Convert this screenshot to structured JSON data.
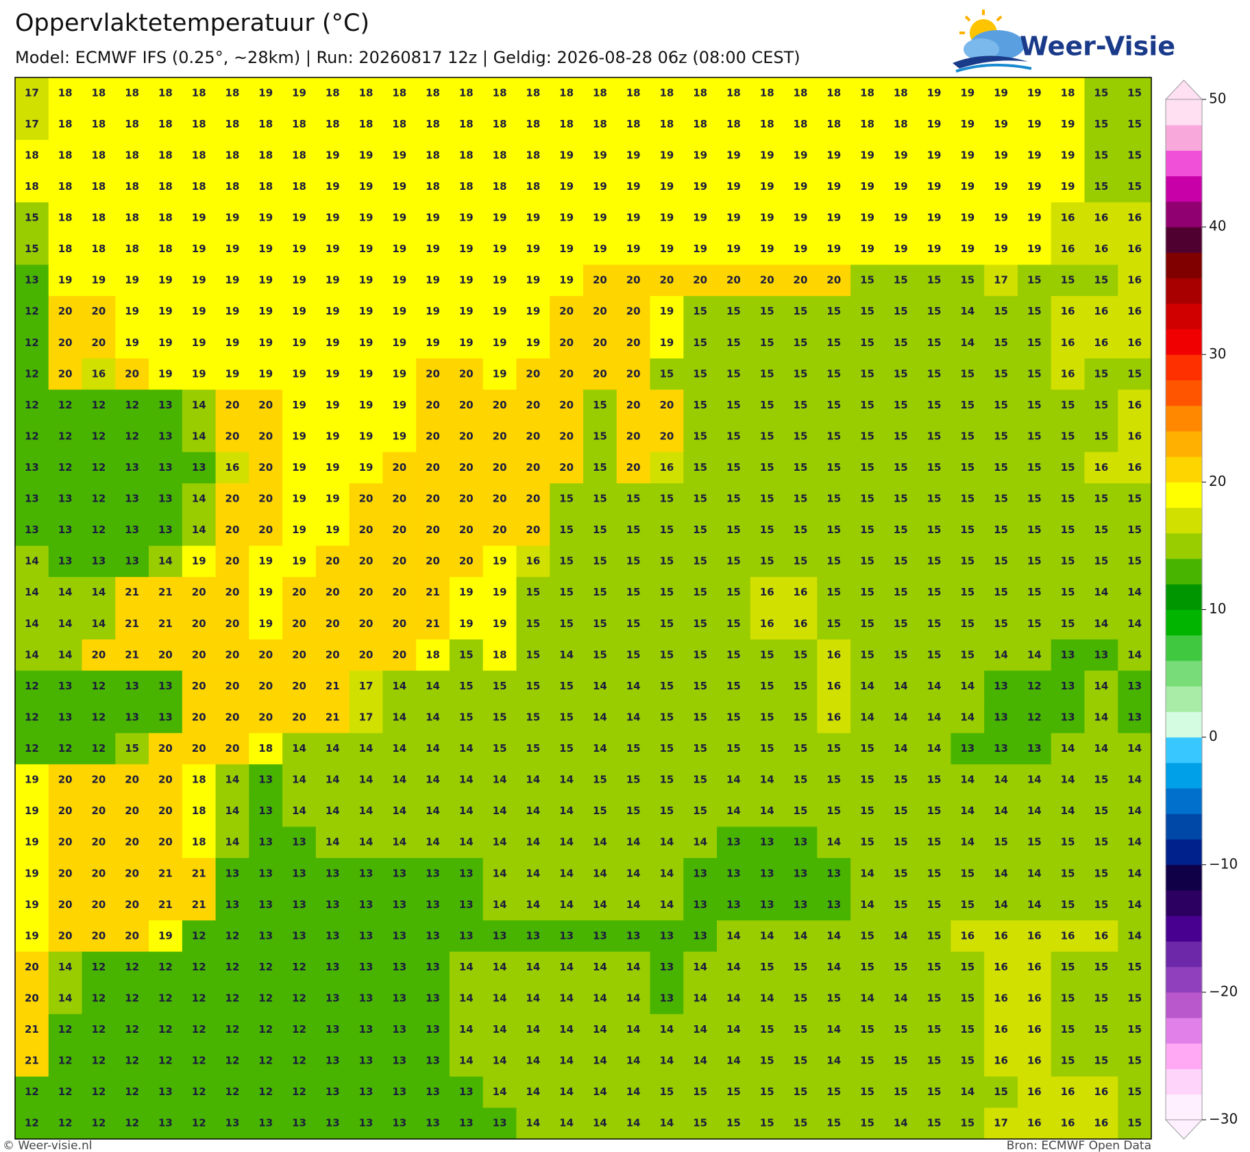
{
  "header": {
    "title": "Oppervlaktetemperatuur (°C)",
    "subtitle": "Model: ECMWF IFS (0.25°, ~28km)  |  Run: 20260817 12z  |  Geldig: 2026-08-28 06z (08:00 CEST)"
  },
  "logo": {
    "text": "Weer-Visie"
  },
  "map": {
    "rows": [
      [
        17,
        18,
        18,
        18,
        18,
        18,
        18,
        19,
        19,
        18,
        18,
        18,
        18,
        18,
        18,
        18,
        18,
        18,
        18,
        18,
        18,
        18,
        18,
        18,
        18,
        18,
        18,
        19,
        19,
        19,
        19,
        18,
        15,
        15
      ],
      [
        17,
        18,
        18,
        18,
        18,
        18,
        18,
        18,
        18,
        18,
        18,
        18,
        18,
        18,
        18,
        18,
        18,
        18,
        18,
        18,
        18,
        18,
        18,
        18,
        18,
        18,
        18,
        19,
        19,
        19,
        19,
        19,
        15,
        15
      ],
      [
        18,
        18,
        18,
        18,
        18,
        18,
        18,
        18,
        18,
        19,
        19,
        19,
        18,
        18,
        18,
        18,
        19,
        19,
        19,
        19,
        19,
        19,
        19,
        19,
        19,
        19,
        19,
        19,
        19,
        19,
        19,
        19,
        15,
        15
      ],
      [
        18,
        18,
        18,
        18,
        18,
        18,
        18,
        18,
        18,
        19,
        19,
        19,
        18,
        18,
        18,
        18,
        19,
        19,
        19,
        19,
        19,
        19,
        19,
        19,
        19,
        19,
        19,
        19,
        19,
        19,
        19,
        19,
        15,
        15
      ],
      [
        15,
        18,
        18,
        18,
        18,
        19,
        19,
        19,
        19,
        19,
        19,
        19,
        19,
        19,
        19,
        19,
        19,
        19,
        19,
        19,
        19,
        19,
        19,
        19,
        19,
        19,
        19,
        19,
        19,
        19,
        19,
        16,
        16,
        16
      ],
      [
        15,
        18,
        18,
        18,
        18,
        19,
        19,
        19,
        19,
        19,
        19,
        19,
        19,
        19,
        19,
        19,
        19,
        19,
        19,
        19,
        19,
        19,
        19,
        19,
        19,
        19,
        19,
        19,
        19,
        19,
        19,
        16,
        16,
        16
      ],
      [
        13,
        19,
        19,
        19,
        19,
        19,
        19,
        19,
        19,
        19,
        19,
        19,
        19,
        19,
        19,
        19,
        19,
        20,
        20,
        20,
        20,
        20,
        20,
        20,
        20,
        15,
        15,
        15,
        15,
        17,
        15,
        15,
        15,
        16
      ],
      [
        12,
        20,
        20,
        19,
        19,
        19,
        19,
        19,
        19,
        19,
        19,
        19,
        19,
        19,
        19,
        19,
        20,
        20,
        20,
        19,
        15,
        15,
        15,
        15,
        15,
        15,
        15,
        15,
        14,
        15,
        15,
        16,
        16,
        16
      ],
      [
        12,
        20,
        20,
        19,
        19,
        19,
        19,
        19,
        19,
        19,
        19,
        19,
        19,
        19,
        19,
        19,
        20,
        20,
        20,
        19,
        15,
        15,
        15,
        15,
        15,
        15,
        15,
        15,
        14,
        15,
        15,
        16,
        16,
        16
      ],
      [
        12,
        20,
        16,
        20,
        19,
        19,
        19,
        19,
        19,
        19,
        19,
        19,
        20,
        20,
        19,
        20,
        20,
        20,
        20,
        15,
        15,
        15,
        15,
        15,
        15,
        15,
        15,
        15,
        15,
        15,
        15,
        16,
        15,
        15
      ],
      [
        12,
        12,
        12,
        12,
        13,
        14,
        20,
        20,
        19,
        19,
        19,
        19,
        20,
        20,
        20,
        20,
        20,
        15,
        20,
        20,
        15,
        15,
        15,
        15,
        15,
        15,
        15,
        15,
        15,
        15,
        15,
        15,
        15,
        16
      ],
      [
        12,
        12,
        12,
        12,
        13,
        14,
        20,
        20,
        19,
        19,
        19,
        19,
        20,
        20,
        20,
        20,
        20,
        15,
        20,
        20,
        15,
        15,
        15,
        15,
        15,
        15,
        15,
        15,
        15,
        15,
        15,
        15,
        15,
        16
      ],
      [
        13,
        12,
        12,
        13,
        13,
        13,
        16,
        20,
        19,
        19,
        19,
        20,
        20,
        20,
        20,
        20,
        20,
        15,
        20,
        16,
        15,
        15,
        15,
        15,
        15,
        15,
        15,
        15,
        15,
        15,
        15,
        15,
        16,
        16
      ],
      [
        13,
        13,
        12,
        13,
        13,
        14,
        20,
        20,
        19,
        19,
        20,
        20,
        20,
        20,
        20,
        20,
        15,
        15,
        15,
        15,
        15,
        15,
        15,
        15,
        15,
        15,
        15,
        15,
        15,
        15,
        15,
        15,
        15,
        15
      ],
      [
        13,
        13,
        12,
        13,
        13,
        14,
        20,
        20,
        19,
        19,
        20,
        20,
        20,
        20,
        20,
        20,
        15,
        15,
        15,
        15,
        15,
        15,
        15,
        15,
        15,
        15,
        15,
        15,
        15,
        15,
        15,
        15,
        15,
        15
      ],
      [
        14,
        13,
        13,
        13,
        14,
        19,
        20,
        19,
        19,
        20,
        20,
        20,
        20,
        20,
        19,
        16,
        15,
        15,
        15,
        15,
        15,
        15,
        15,
        15,
        15,
        15,
        15,
        15,
        15,
        15,
        15,
        15,
        15,
        15
      ],
      [
        14,
        14,
        14,
        21,
        21,
        20,
        20,
        19,
        20,
        20,
        20,
        20,
        21,
        19,
        19,
        15,
        15,
        15,
        15,
        15,
        15,
        15,
        16,
        16,
        15,
        15,
        15,
        15,
        15,
        15,
        15,
        15,
        14,
        14
      ],
      [
        14,
        14,
        14,
        21,
        21,
        20,
        20,
        19,
        20,
        20,
        20,
        20,
        21,
        19,
        19,
        15,
        15,
        15,
        15,
        15,
        15,
        15,
        16,
        16,
        15,
        15,
        15,
        15,
        15,
        15,
        15,
        15,
        14,
        14
      ],
      [
        14,
        14,
        20,
        21,
        20,
        20,
        20,
        20,
        20,
        20,
        20,
        20,
        18,
        15,
        18,
        15,
        14,
        15,
        15,
        15,
        15,
        15,
        15,
        15,
        16,
        15,
        15,
        15,
        15,
        14,
        14,
        13,
        13,
        14
      ],
      [
        12,
        13,
        12,
        13,
        13,
        20,
        20,
        20,
        20,
        21,
        17,
        14,
        14,
        15,
        15,
        15,
        15,
        14,
        14,
        15,
        15,
        15,
        15,
        15,
        16,
        14,
        14,
        14,
        14,
        13,
        12,
        13,
        14,
        13
      ],
      [
        12,
        13,
        12,
        13,
        13,
        20,
        20,
        20,
        20,
        21,
        17,
        14,
        14,
        15,
        15,
        15,
        15,
        14,
        14,
        15,
        15,
        15,
        15,
        15,
        16,
        14,
        14,
        14,
        14,
        13,
        12,
        13,
        14,
        13
      ],
      [
        12,
        12,
        12,
        15,
        20,
        20,
        20,
        18,
        14,
        14,
        14,
        14,
        14,
        14,
        15,
        15,
        15,
        14,
        15,
        15,
        15,
        15,
        15,
        15,
        15,
        15,
        14,
        14,
        13,
        13,
        13,
        14,
        14,
        14
      ],
      [
        19,
        20,
        20,
        20,
        20,
        18,
        14,
        13,
        14,
        14,
        14,
        14,
        14,
        14,
        14,
        14,
        14,
        15,
        15,
        15,
        15,
        14,
        14,
        15,
        15,
        15,
        15,
        15,
        14,
        14,
        14,
        14,
        15,
        14
      ],
      [
        19,
        20,
        20,
        20,
        20,
        18,
        14,
        13,
        14,
        14,
        14,
        14,
        14,
        14,
        14,
        14,
        14,
        15,
        15,
        15,
        15,
        14,
        14,
        15,
        15,
        15,
        15,
        15,
        14,
        14,
        14,
        14,
        15,
        14
      ],
      [
        19,
        20,
        20,
        20,
        20,
        18,
        14,
        13,
        13,
        14,
        14,
        14,
        14,
        14,
        14,
        14,
        14,
        14,
        14,
        14,
        14,
        13,
        13,
        13,
        14,
        15,
        15,
        15,
        14,
        15,
        15,
        15,
        15,
        14
      ],
      [
        19,
        20,
        20,
        20,
        21,
        21,
        13,
        13,
        13,
        13,
        13,
        13,
        13,
        13,
        14,
        14,
        14,
        14,
        14,
        14,
        13,
        13,
        13,
        13,
        13,
        14,
        15,
        15,
        15,
        14,
        14,
        15,
        15,
        14
      ],
      [
        19,
        20,
        20,
        20,
        21,
        21,
        13,
        13,
        13,
        13,
        13,
        13,
        13,
        13,
        14,
        14,
        14,
        14,
        14,
        14,
        13,
        13,
        13,
        13,
        13,
        14,
        15,
        15,
        15,
        14,
        14,
        15,
        15,
        14
      ],
      [
        19,
        20,
        20,
        20,
        19,
        12,
        12,
        13,
        13,
        13,
        13,
        13,
        13,
        13,
        13,
        13,
        13,
        13,
        13,
        13,
        13,
        14,
        14,
        14,
        14,
        15,
        14,
        15,
        16,
        16,
        16,
        16,
        16,
        14
      ],
      [
        20,
        14,
        12,
        12,
        12,
        12,
        12,
        12,
        12,
        13,
        13,
        13,
        13,
        14,
        14,
        14,
        14,
        14,
        14,
        13,
        14,
        14,
        15,
        15,
        14,
        15,
        15,
        15,
        15,
        16,
        16,
        15,
        15,
        15
      ],
      [
        20,
        14,
        12,
        12,
        12,
        12,
        12,
        12,
        12,
        13,
        13,
        13,
        13,
        14,
        14,
        14,
        14,
        14,
        14,
        13,
        14,
        14,
        14,
        15,
        15,
        14,
        14,
        15,
        15,
        16,
        16,
        15,
        15,
        15
      ],
      [
        21,
        12,
        12,
        12,
        12,
        12,
        12,
        12,
        12,
        13,
        13,
        13,
        13,
        14,
        14,
        14,
        14,
        14,
        14,
        14,
        14,
        14,
        15,
        15,
        14,
        15,
        15,
        15,
        15,
        16,
        16,
        15,
        15,
        15
      ],
      [
        21,
        12,
        12,
        12,
        12,
        12,
        12,
        12,
        12,
        13,
        13,
        13,
        13,
        14,
        14,
        14,
        14,
        14,
        14,
        14,
        14,
        14,
        15,
        15,
        14,
        15,
        15,
        15,
        15,
        16,
        16,
        15,
        15,
        15
      ],
      [
        12,
        12,
        12,
        12,
        13,
        12,
        12,
        12,
        12,
        13,
        13,
        13,
        13,
        13,
        14,
        14,
        14,
        14,
        14,
        15,
        15,
        15,
        15,
        15,
        15,
        15,
        15,
        15,
        14,
        15,
        16,
        16,
        16,
        15
      ],
      [
        12,
        12,
        12,
        12,
        13,
        12,
        13,
        13,
        13,
        13,
        13,
        13,
        13,
        13,
        13,
        14,
        14,
        14,
        14,
        14,
        15,
        15,
        15,
        15,
        15,
        15,
        14,
        15,
        15,
        17,
        16,
        16,
        16,
        15
      ]
    ]
  },
  "colorbar": {
    "bounds": [
      -30,
      -28,
      -26,
      -24,
      -22,
      -20,
      -18,
      -16,
      -14,
      -12,
      -10,
      -8,
      -6,
      -4,
      -2,
      0,
      2,
      4,
      6,
      8,
      10,
      12,
      14,
      16,
      18,
      20,
      22,
      24,
      26,
      28,
      30,
      32,
      34,
      36,
      38,
      40,
      42,
      44,
      46,
      48,
      50
    ],
    "colors": [
      "#fff0ff",
      "#ffd4fa",
      "#ffa8f4",
      "#e080e8",
      "#b858cc",
      "#9040bc",
      "#6c28a8",
      "#480090",
      "#2c0060",
      "#100048",
      "#00208c",
      "#0048a8",
      "#0070cc",
      "#00a0e8",
      "#38c8ff",
      "#d4fce0",
      "#a8eca8",
      "#78dc78",
      "#40c840",
      "#00b400",
      "#009600",
      "#48b400",
      "#9acd00",
      "#d2e000",
      "#ffff00",
      "#ffd500",
      "#ffb000",
      "#ff8800",
      "#ff5500",
      "#ff3000",
      "#f00000",
      "#d00000",
      "#a80000",
      "#800000",
      "#500030",
      "#900070",
      "#c800a8",
      "#f050d8",
      "#f9a8dc",
      "#ffe0f2"
    ],
    "ticks": [
      {
        "value": -30,
        "label": "−30"
      },
      {
        "value": -20,
        "label": "−20"
      },
      {
        "value": -10,
        "label": "−10"
      },
      0,
      10,
      20,
      30,
      40,
      50
    ]
  },
  "footer": {
    "left": "© Weer-visie.nl",
    "right": "Bron: ECMWF Open Data"
  }
}
